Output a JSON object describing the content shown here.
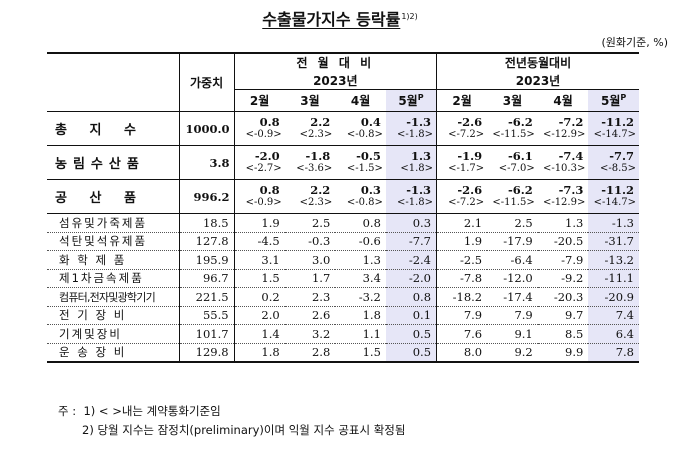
{
  "title": "수출물가지수 등락률",
  "title_sup": "1)2)",
  "unit": "(원화기준, %)",
  "header": {
    "weight": "가중치",
    "group_mom": "전 월 대 비",
    "group_yoy": "전년동월대비",
    "year": "2023년",
    "months": [
      "2월",
      "3월",
      "4월",
      "5월"
    ],
    "prelim_mark": "P"
  },
  "main_rows": [
    {
      "label": "총 지 수",
      "weight": "1000.0",
      "mom": [
        "0.8",
        "2.2",
        "0.4",
        "-1.3"
      ],
      "mom_b": [
        "<-0.9>",
        "<2.3>",
        "<-0.8>",
        "<-1.8>"
      ],
      "yoy": [
        "-2.6",
        "-6.2",
        "-7.2",
        "-11.2"
      ],
      "yoy_b": [
        "<-7.2>",
        "<-11.5>",
        "<-12.9>",
        "<-14.7>"
      ]
    },
    {
      "label": "농림수산품",
      "weight": "3.8",
      "mom": [
        "-2.0",
        "-1.8",
        "-0.5",
        "1.3"
      ],
      "mom_b": [
        "<-2.7>",
        "<-3.6>",
        "<-1.5>",
        "<1.8>"
      ],
      "yoy": [
        "-1.9",
        "-6.1",
        "-7.4",
        "-7.7"
      ],
      "yoy_b": [
        "<-1.7>",
        "<-7.0>",
        "<-10.3>",
        "<-8.5>"
      ]
    },
    {
      "label": "공 산 품",
      "weight": "996.2",
      "mom": [
        "0.8",
        "2.2",
        "0.3",
        "-1.3"
      ],
      "mom_b": [
        "<-0.9>",
        "<2.3>",
        "<-0.8>",
        "<-1.8>"
      ],
      "yoy": [
        "-2.6",
        "-6.2",
        "-7.3",
        "-11.2"
      ],
      "yoy_b": [
        "<-7.2>",
        "<-11.5>",
        "<-12.9>",
        "<-14.7>"
      ]
    }
  ],
  "sub_rows": [
    {
      "label": "섬유및가죽제품",
      "weight": "18.5",
      "mom": [
        "1.9",
        "2.5",
        "0.8",
        "0.3"
      ],
      "yoy": [
        "2.1",
        "2.5",
        "1.3",
        "-1.3"
      ]
    },
    {
      "label": "석탄및석유제품",
      "weight": "127.8",
      "mom": [
        "-4.5",
        "-0.3",
        "-0.6",
        "-7.7"
      ],
      "yoy": [
        "1.9",
        "-17.9",
        "-20.5",
        "-31.7"
      ]
    },
    {
      "label": "화 학 제 품",
      "weight": "195.9",
      "mom": [
        "3.1",
        "3.0",
        "1.3",
        "-2.4"
      ],
      "yoy": [
        "-2.5",
        "-6.4",
        "-7.9",
        "-13.2"
      ]
    },
    {
      "label": "제1차금속제품",
      "weight": "96.7",
      "mom": [
        "1.5",
        "1.7",
        "3.4",
        "-2.0"
      ],
      "yoy": [
        "-7.8",
        "-12.0",
        "-9.2",
        "-11.1"
      ]
    },
    {
      "label": "컴퓨터,전자및광학기기",
      "weight": "221.5",
      "mom": [
        "0.2",
        "2.3",
        "-3.2",
        "0.8"
      ],
      "yoy": [
        "-18.2",
        "-17.4",
        "-20.3",
        "-20.9"
      ]
    },
    {
      "label": "전 기 장 비",
      "weight": "55.5",
      "mom": [
        "2.0",
        "2.6",
        "1.8",
        "0.1"
      ],
      "yoy": [
        "7.9",
        "7.9",
        "9.7",
        "7.4"
      ]
    },
    {
      "label": "기계및장비",
      "weight": "101.7",
      "mom": [
        "1.4",
        "3.2",
        "1.1",
        "0.5"
      ],
      "yoy": [
        "7.6",
        "9.1",
        "8.5",
        "6.4"
      ]
    },
    {
      "label": "운 송 장 비",
      "weight": "129.8",
      "mom": [
        "1.8",
        "2.8",
        "1.5",
        "0.5"
      ],
      "yoy": [
        "8.0",
        "9.2",
        "9.9",
        "7.8"
      ]
    }
  ],
  "notes": {
    "prefix": "주 :",
    "n1": "1) < >내는 계약통화기준임",
    "n2": "2) 당월 지수는 잠정치(preliminary)이며 익월 지수 공표시 확정됨"
  }
}
